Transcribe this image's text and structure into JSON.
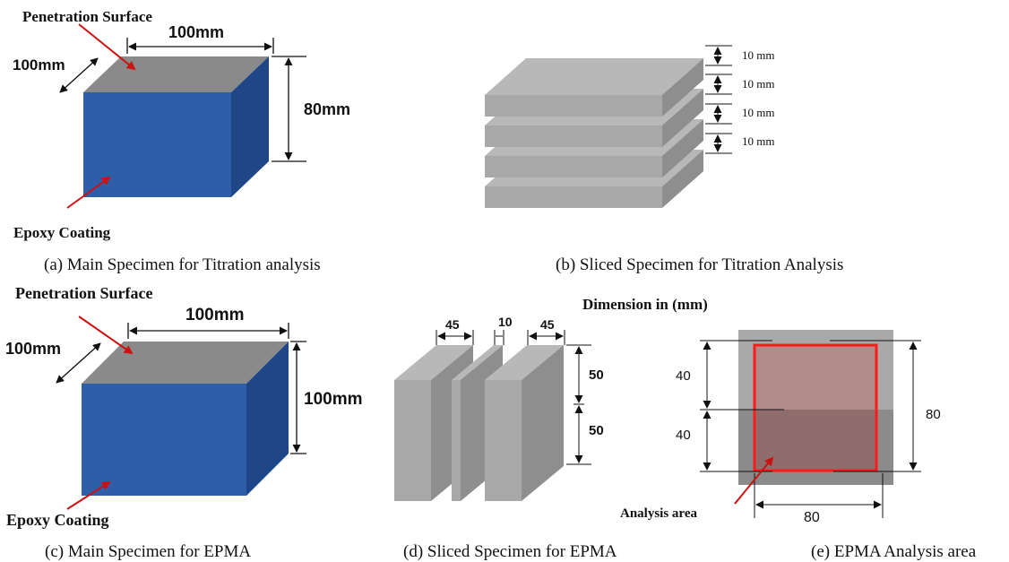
{
  "colors": {
    "blue_face": "#2e5ea8",
    "blue_side": "#1f4788",
    "top_face": "#8a8a8a",
    "slice_top": "#b8b8b8",
    "slice_front": "#a8a8a8",
    "slice_side": "#8e8e8e",
    "arrow_red": "#cc1111",
    "analysis_box": "#ff1a1a",
    "analysis_fill_upper": "#b38a8a",
    "analysis_fill_lower": "#8f6d6d",
    "outer_gray_upper": "#a9a9a9",
    "outer_gray_lower": "#8b8b8b"
  },
  "panel_a": {
    "surface_label": "Penetration Surface",
    "top_width": "100mm",
    "depth": "100mm",
    "height": "80mm",
    "coating_label": "Epoxy Coating",
    "caption": "(a) Main Specimen for Titration analysis"
  },
  "panel_b": {
    "slice_thickness": [
      "10 mm",
      "10 mm",
      "10 mm",
      "10 mm"
    ],
    "caption": "(b) Sliced Specimen for Titration Analysis"
  },
  "panel_c": {
    "surface_label": "Penetration Surface",
    "top_width": "100mm",
    "depth": "100mm",
    "height": "100mm",
    "coating_label": "Epoxy Coating",
    "caption": "(c) Main Specimen for EPMA"
  },
  "panel_d": {
    "dimension_note": "Dimension in (mm)",
    "widths": [
      "45",
      "10",
      "45"
    ],
    "heights": [
      "50",
      "50"
    ],
    "caption": "(d) Sliced Specimen for EPMA"
  },
  "panel_e": {
    "left_dims": [
      "40",
      "40"
    ],
    "right_dim": "80",
    "bottom_dim": "80",
    "analysis_label": "Analysis area",
    "caption": "(e) EPMA Analysis area"
  }
}
